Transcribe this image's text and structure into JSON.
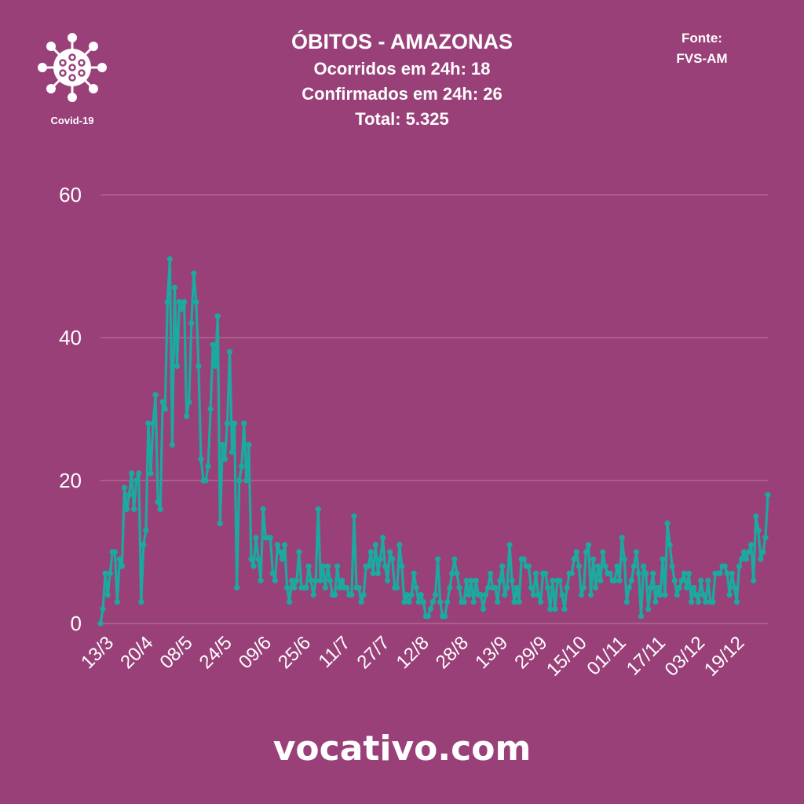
{
  "logo": {
    "label": "Covid-19",
    "icon": "virus-icon"
  },
  "header": {
    "title": "ÓBITOS - AMAZONAS",
    "line1": "Ocorridos em 24h: 18",
    "line2": "Confirmados em 24h: 26",
    "line3": "Total: 5.325"
  },
  "source": {
    "line1": "Fonte:",
    "line2": "FVS-AM"
  },
  "footer": {
    "site": "vocativo.com"
  },
  "colors": {
    "background": "#9a4079",
    "line": "#1aaa9f",
    "grid": "#b57099",
    "text": "#ffffff"
  },
  "chart_data": {
    "type": "line",
    "title": "ÓBITOS - AMAZONAS",
    "xlabel": "",
    "ylabel": "",
    "ylim": [
      0,
      60
    ],
    "yticks": [
      0,
      20,
      40,
      60
    ],
    "xtick_labels": [
      "13/3",
      "20/4",
      "08/5",
      "24/5",
      "09/6",
      "25/6",
      "11/7",
      "27/7",
      "12/8",
      "28/8",
      "13/9",
      "29/9",
      "15/10",
      "01/11",
      "17/11",
      "03/12",
      "19/12"
    ],
    "grid": true,
    "legend": "none",
    "series": [
      {
        "values": [
          0,
          2,
          7,
          4,
          7,
          10,
          10,
          3,
          9,
          8,
          19,
          16,
          18,
          21,
          16,
          20,
          21,
          3,
          11,
          13,
          28,
          21,
          28,
          32,
          17,
          16,
          31,
          30,
          45,
          51,
          25,
          47,
          36,
          45,
          44,
          45,
          29,
          31,
          42,
          49,
          45,
          36,
          23,
          20,
          20,
          22,
          30,
          39,
          36,
          43,
          14,
          25,
          23,
          28,
          38,
          24,
          28,
          5,
          20,
          22,
          28,
          20,
          25,
          9,
          8,
          12,
          9,
          6,
          16,
          12,
          12,
          12,
          7,
          6,
          11,
          10,
          9,
          11,
          5,
          3,
          6,
          5,
          6,
          10,
          5,
          5,
          5,
          8,
          6,
          4,
          6,
          16,
          6,
          8,
          5,
          8,
          6,
          4,
          4,
          8,
          5,
          6,
          5,
          5,
          4,
          4,
          15,
          5,
          5,
          3,
          4,
          8,
          8,
          10,
          7,
          11,
          7,
          9,
          12,
          8,
          6,
          10,
          9,
          5,
          5,
          11,
          8,
          3,
          4,
          3,
          4,
          7,
          5,
          3,
          4,
          3,
          1,
          1,
          2,
          3,
          4,
          9,
          3,
          1,
          1,
          3,
          5,
          7,
          9,
          7,
          5,
          3,
          3,
          6,
          4,
          6,
          3,
          6,
          4,
          4,
          2,
          4,
          5,
          7,
          5,
          5,
          3,
          6,
          8,
          4,
          5,
          11,
          6,
          3,
          5,
          3,
          9,
          9,
          8,
          8,
          5,
          4,
          7,
          4,
          3,
          7,
          7,
          5,
          2,
          6,
          2,
          6,
          6,
          4,
          2,
          5,
          7,
          7,
          9,
          10,
          8,
          4,
          5,
          10,
          11,
          4,
          9,
          5,
          8,
          6,
          10,
          8,
          7,
          7,
          6,
          6,
          8,
          6,
          12,
          9,
          3,
          5,
          6,
          8,
          10,
          7,
          1,
          8,
          7,
          2,
          5,
          7,
          3,
          5,
          4,
          9,
          4,
          14,
          11,
          8,
          6,
          4,
          5,
          6,
          7,
          5,
          7,
          3,
          5,
          4,
          3,
          6,
          4,
          3,
          6,
          3,
          3,
          7,
          7,
          7,
          8,
          8,
          7,
          4,
          7,
          5,
          3,
          8,
          9,
          10,
          9,
          10,
          11,
          6,
          15,
          13,
          9,
          10,
          12,
          18
        ]
      }
    ]
  }
}
